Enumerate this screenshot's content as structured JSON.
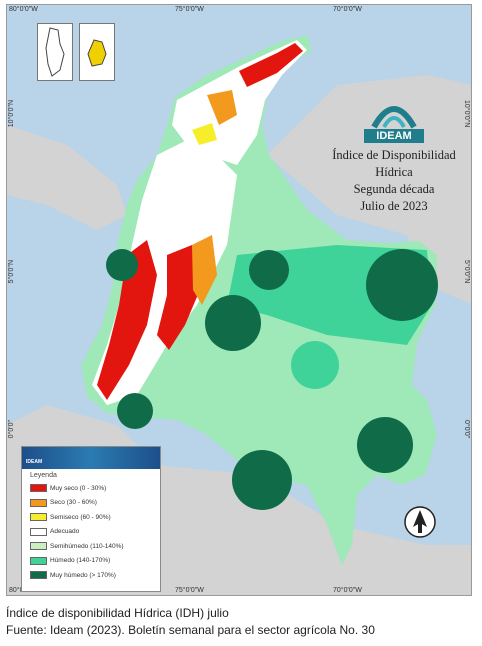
{
  "map": {
    "graticule": {
      "longitudes": [
        "80°0'0\"W",
        "75°0'0\"W",
        "70°0'0\"W"
      ],
      "latitudes": [
        "10°0'0\"N",
        "5°0'0\"N",
        "0°0'0\""
      ]
    },
    "logo_text": "IDEAM",
    "title_lines": [
      "Índice de Disponibilidad Hídrica",
      "Segunda década",
      "Julio de 2023"
    ],
    "legend": {
      "banner_text": "IDEAM",
      "title": "Leyenda",
      "items": [
        {
          "label": "Muy seco (0 - 30%)",
          "color": "#e3160f"
        },
        {
          "label": "Seco (30 - 60%)",
          "color": "#f39a1e"
        },
        {
          "label": "Semiseco (60 - 90%)",
          "color": "#f6ee2a"
        },
        {
          "label": "Adecuado",
          "color": "#ffffff"
        },
        {
          "label": "Semihúmedo (110-140%)",
          "color": "#cdeebf"
        },
        {
          "label": "Húmedo (140-170%)",
          "color": "#3fd39a"
        },
        {
          "label": "Muy húmedo (> 170%)",
          "color": "#0f6b48"
        }
      ]
    },
    "colors": {
      "sea": "#b9d3e8",
      "neighbor_land": "#d3d3d3",
      "semiwet": "#9fe8b8",
      "wet": "#3fd39a",
      "very_wet": "#0f6b48",
      "adequate": "#ffffff",
      "very_dry": "#e3160f",
      "dry": "#f39a1e",
      "semidry": "#f6ee2a",
      "brand": "#1f7d8c"
    },
    "icons": [
      "north-arrow-icon",
      "ideam-logo-icon"
    ]
  },
  "caption": {
    "line1": "Índice de disponibilidad Hídrica (IDH)  julio",
    "line2": "Fuente: Ideam (2023). Boletín semanal para el sector agrícola No. 30"
  }
}
